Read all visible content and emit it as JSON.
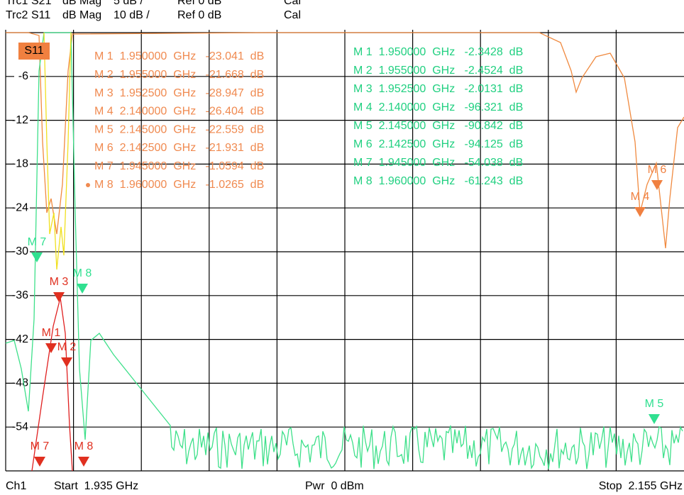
{
  "header": {
    "line1": [
      "Trc1",
      "S21",
      "dB Mag",
      "5 dB /",
      "Ref 0 dB",
      "Cal"
    ],
    "line2": [
      "Trc2",
      "S11",
      "dB Mag",
      "10 dB /",
      "Ref 0 dB",
      "Cal"
    ]
  },
  "trace_badge": "S11",
  "y_labels": [
    "-6",
    "-12",
    "-18",
    "-24",
    "-30",
    "-36",
    "-42",
    "-48",
    "-54"
  ],
  "markers_s11": [
    "M 1  1.950000  GHz   -23.041  dB",
    "M 2  1.955000  GHz   -21.668  dB",
    "M 3  1.952500  GHz   -28.947  dB",
    "M 4  2.140000  GHz   -26.404  dB",
    "M 5  2.145000  GHz   -22.559  dB",
    "M 6  2.142500  GHz   -21.931  dB",
    "M 7  1.945000  GHz   -1.0594  dB",
    "M 8  1.960000  GHz   -1.0265  dB"
  ],
  "markers_s21": [
    "M 1  1.950000  GHz   -2.3428  dB",
    "M 2  1.955000  GHz   -2.4524  dB",
    "M 3  1.952500  GHz   -2.0131  dB",
    "M 4  2.140000  GHz   -96.321  dB",
    "M 5  2.145000  GHz   -90.842  dB",
    "M 6  2.142500  GHz   -94.125  dB",
    "M 7  1.945000  GHz   -54.038  dB",
    "M 8  1.960000  GHz   -61.243  dB"
  ],
  "flags": [
    "M 7",
    "M 8",
    "M 3",
    "M 1",
    "M 2",
    "M 7",
    "M 8",
    "M 5",
    "M 4",
    "M 6"
  ],
  "footer": {
    "channel": "Ch1",
    "start": "Start  1.935 GHz",
    "power": "Pwr  0 dBm",
    "stop": "Stop  2.155 GHz"
  }
}
